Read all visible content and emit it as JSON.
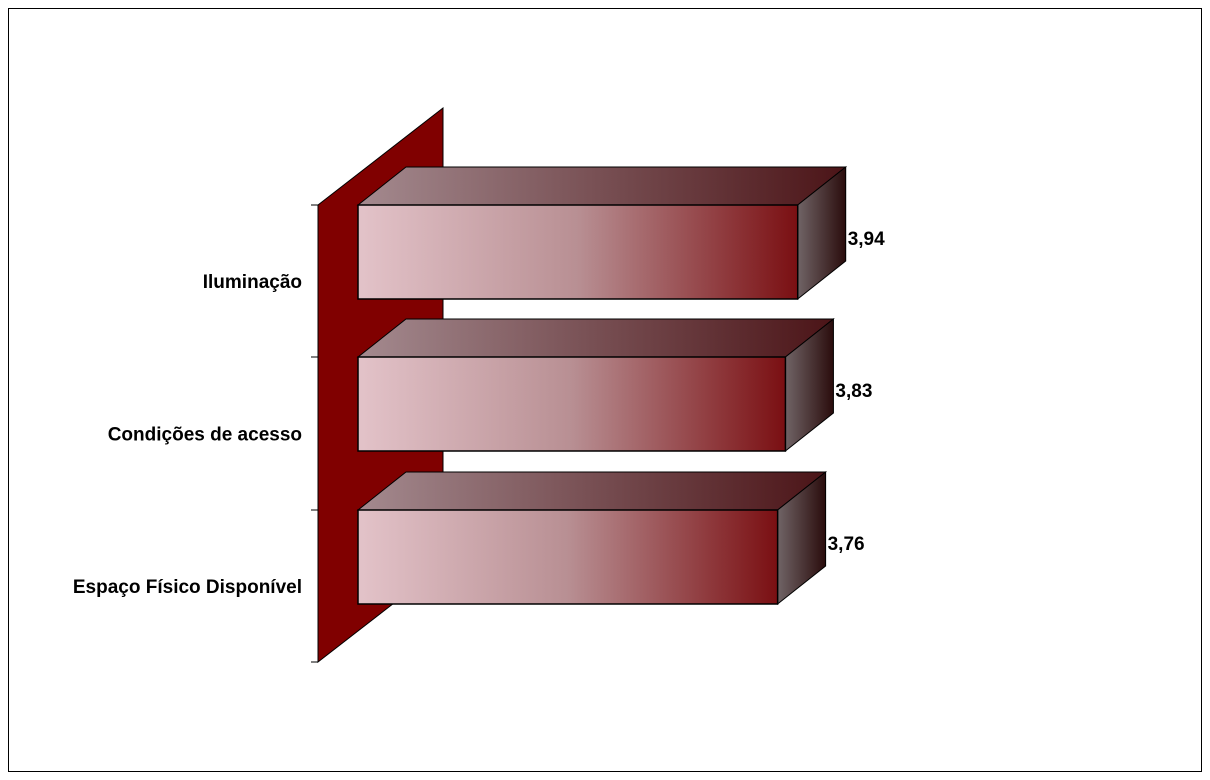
{
  "chart_data": {
    "type": "bar",
    "orientation": "horizontal",
    "three_d": true,
    "categories": [
      "Iluminação",
      "Condições de acesso",
      "Espaço Físico Disponível"
    ],
    "values": [
      3.94,
      3.83,
      3.76
    ],
    "value_labels": [
      "3,94",
      "3,83",
      "3,76"
    ],
    "title": "",
    "xlabel": "",
    "ylabel": "",
    "grid": false,
    "legend": "none",
    "colors": {
      "wall": "#800000",
      "bar_light": "#e3c3c9",
      "bar_dark": "#7a0f12",
      "top_light": "#a48a8f",
      "top_dark": "#4b1417",
      "side_light": "#706466",
      "side_dark": "#2a0c0c"
    }
  }
}
